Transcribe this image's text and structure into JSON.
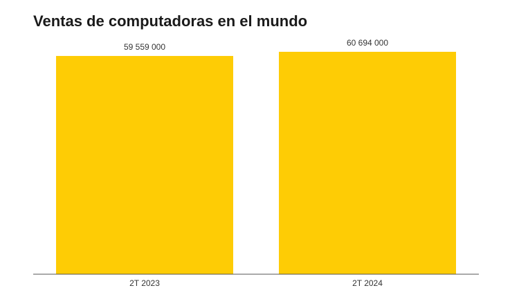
{
  "chart_data": {
    "type": "bar",
    "title": "Ventas de computadoras en el mundo",
    "categories": [
      "2T 2023",
      "2T 2024"
    ],
    "values": [
      59559000,
      60694000
    ],
    "value_labels": [
      "59 559 000",
      "60 694 000"
    ],
    "color": "#fecc05"
  }
}
